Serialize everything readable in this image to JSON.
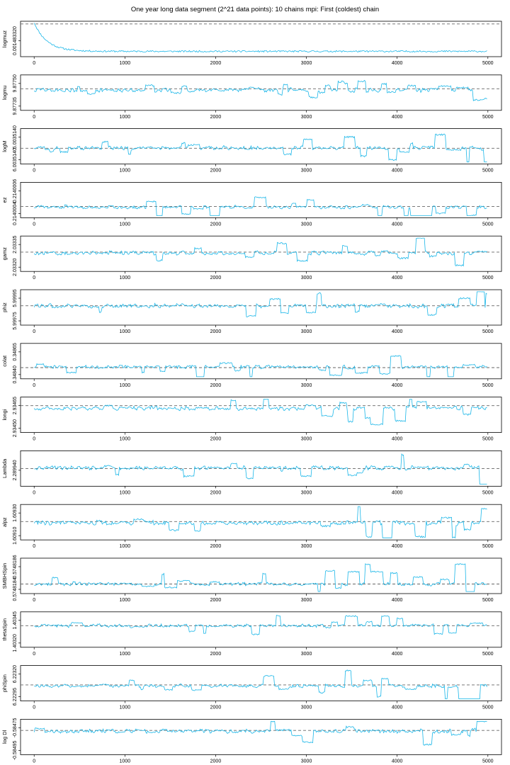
{
  "chart_data": {
    "title": "One year long data segment (2^21 data points): 10 chains mpi: First (coldest) chain",
    "type": "line",
    "line_color": "#1ab6e8",
    "reference_color": "#666666",
    "x_ticks": [
      0,
      1000,
      2000,
      3000,
      4000,
      5000
    ],
    "xlim": [
      -150,
      5150
    ],
    "panels": [
      {
        "ylabel": "logmuz",
        "y_ticks": [
          "0.001483320"
        ],
        "ylim": [
          0,
          1
        ],
        "ref": 0.96,
        "series": {
          "kind": "burnin",
          "base": 0.12,
          "start": 1.0,
          "decay": 140,
          "noise": 0.025,
          "seed": 11
        }
      },
      {
        "ylabel": "logmu",
        "y_ticks": [
          "9.87735",
          "9.87750"
        ],
        "ylim": [
          0,
          1
        ],
        "ref": 0.62,
        "series": {
          "kind": "walk",
          "base": 0.58,
          "noise": 0.05,
          "jump": 0.35,
          "seed": 22
        }
      },
      {
        "ylabel": "logM",
        "y_ticks": [
          "6.0035140",
          "5.0035140"
        ],
        "ylim": [
          0,
          1
        ],
        "ref": 0.44,
        "series": {
          "kind": "walk",
          "base": 0.45,
          "noise": 0.05,
          "jump": 0.45,
          "seed": 33
        }
      },
      {
        "ylabel": "ez",
        "y_ticks": [
          "0.2140004",
          "0.2140006"
        ],
        "ylim": [
          0,
          1
        ],
        "ref": 0.3,
        "series": {
          "kind": "walk",
          "base": 0.28,
          "noise": 0.04,
          "jump": 0.6,
          "seed": 44
        }
      },
      {
        "ylabel": "gamz",
        "y_ticks": [
          "2.03320",
          "2.03335"
        ],
        "ylim": [
          0,
          1
        ],
        "ref": 0.55,
        "series": {
          "kind": "walk",
          "base": 0.52,
          "noise": 0.05,
          "jump": 0.5,
          "seed": 55
        }
      },
      {
        "ylabel": "phiz",
        "y_ticks": [
          "5.99975",
          "5.99995"
        ],
        "ylim": [
          0,
          1
        ],
        "ref": 0.55,
        "series": {
          "kind": "walk",
          "base": 0.55,
          "noise": 0.05,
          "jump": 0.45,
          "seed": 66
        }
      },
      {
        "ylabel": "colat",
        "y_ticks": [
          "0.34840",
          "0.34865"
        ],
        "ylim": [
          0,
          1
        ],
        "ref": 0.3,
        "series": {
          "kind": "walk",
          "base": 0.32,
          "noise": 0.04,
          "jump": 0.6,
          "seed": 77
        }
      },
      {
        "ylabel": "longi",
        "y_ticks": [
          "2.93450",
          "2.93465"
        ],
        "ylim": [
          0,
          1
        ],
        "ref": 0.78,
        "series": {
          "kind": "walk",
          "base": 0.7,
          "noise": 0.05,
          "jump": 0.55,
          "seed": 88
        }
      },
      {
        "ylabel": "Lambda",
        "y_ticks": [
          "2.289940"
        ],
        "ylim": [
          0,
          1
        ],
        "ref": 0.5,
        "series": {
          "kind": "walk",
          "base": 0.52,
          "noise": 0.05,
          "jump": 0.5,
          "seed": 99
        }
      },
      {
        "ylabel": "alpz",
        "y_ticks": [
          "1.60910",
          "1.60930"
        ],
        "ylim": [
          0,
          1
        ],
        "ref": 0.52,
        "series": {
          "kind": "walk",
          "base": 0.48,
          "noise": 0.05,
          "jump": 0.55,
          "seed": 110
        }
      },
      {
        "ylabel": "SMBHSpin",
        "y_ticks": [
          "0.5748184",
          "0.5748186"
        ],
        "ylim": [
          0,
          1
        ],
        "ref": 0.25,
        "series": {
          "kind": "walk",
          "base": 0.25,
          "noise": 0.04,
          "jump": 0.65,
          "seed": 121
        }
      },
      {
        "ylabel": "thetaSpin",
        "y_ticks": [
          "1.40320",
          "1.40345"
        ],
        "ylim": [
          0,
          1
        ],
        "ref": 0.62,
        "series": {
          "kind": "walk",
          "base": 0.62,
          "noise": 0.04,
          "jump": 0.4,
          "seed": 132
        }
      },
      {
        "ylabel": "phiSpin",
        "y_ticks": [
          "6.22295",
          "6.22320"
        ],
        "ylim": [
          0,
          1
        ],
        "ref": 0.45,
        "series": {
          "kind": "walk",
          "base": 0.42,
          "noise": 0.04,
          "jump": 0.6,
          "seed": 143
        }
      },
      {
        "ylabel": "log Dl",
        "y_ticks": [
          "-0.58495",
          "-0.58475"
        ],
        "ylim": [
          0,
          1
        ],
        "ref": 0.7,
        "series": {
          "kind": "walk",
          "base": 0.68,
          "noise": 0.05,
          "jump": 0.5,
          "seed": 154
        }
      }
    ]
  }
}
